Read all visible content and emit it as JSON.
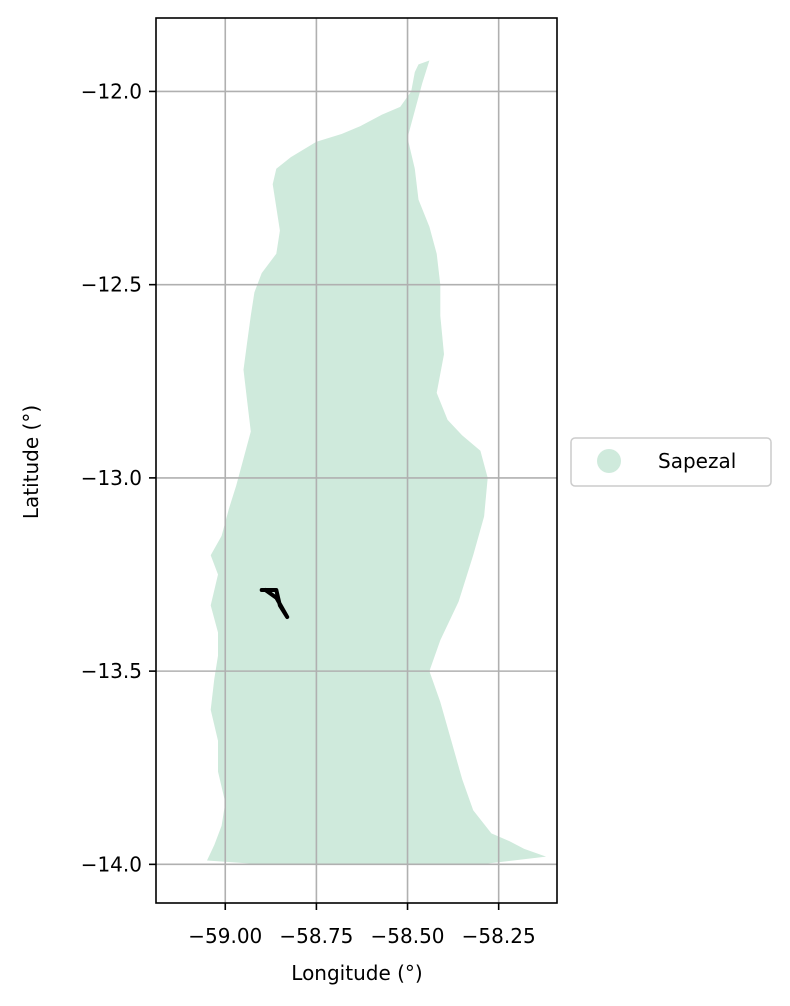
{
  "chart_data": {
    "type": "map",
    "xlabel": "Longitude (°)",
    "ylabel": "Latitude (°)",
    "xlim": [
      -59.19,
      -58.09
    ],
    "ylim": [
      -14.1,
      -11.81
    ],
    "x_ticks": [
      -59.0,
      -58.75,
      -58.5,
      -58.25
    ],
    "x_tick_labels": [
      "−59.00",
      "−58.75",
      "−58.50",
      "−58.25"
    ],
    "y_ticks": [
      -12.0,
      -12.5,
      -13.0,
      -13.5,
      -14.0
    ],
    "y_tick_labels": [
      "−12.0",
      "−12.5",
      "−13.0",
      "−13.5",
      "−14.0"
    ],
    "grid": true,
    "legend": {
      "placement": "outside-right",
      "entries": [
        {
          "label": "Sapezal",
          "color": "#cfeadc"
        }
      ]
    },
    "region": {
      "name": "Sapezal",
      "color": "#cfeadc",
      "boundary": [
        [
          -58.44,
          -11.92
        ],
        [
          -58.47,
          -11.93
        ],
        [
          -58.48,
          -11.95
        ],
        [
          -58.49,
          -12.0
        ],
        [
          -58.52,
          -12.04
        ],
        [
          -58.57,
          -12.06
        ],
        [
          -58.63,
          -12.09
        ],
        [
          -58.68,
          -12.11
        ],
        [
          -58.75,
          -12.13
        ],
        [
          -58.82,
          -12.17
        ],
        [
          -58.86,
          -12.2
        ],
        [
          -58.87,
          -12.24
        ],
        [
          -58.86,
          -12.3
        ],
        [
          -58.85,
          -12.36
        ],
        [
          -58.86,
          -12.42
        ],
        [
          -58.9,
          -12.47
        ],
        [
          -58.92,
          -12.52
        ],
        [
          -58.93,
          -12.58
        ],
        [
          -58.94,
          -12.65
        ],
        [
          -58.95,
          -12.72
        ],
        [
          -58.94,
          -12.8
        ],
        [
          -58.93,
          -12.88
        ],
        [
          -58.95,
          -12.95
        ],
        [
          -58.97,
          -13.02
        ],
        [
          -58.99,
          -13.08
        ],
        [
          -59.01,
          -13.15
        ],
        [
          -59.04,
          -13.2
        ],
        [
          -59.02,
          -13.25
        ],
        [
          -59.04,
          -13.33
        ],
        [
          -59.02,
          -13.4
        ],
        [
          -59.02,
          -13.46
        ],
        [
          -59.03,
          -13.52
        ],
        [
          -59.04,
          -13.6
        ],
        [
          -59.02,
          -13.68
        ],
        [
          -59.02,
          -13.76
        ],
        [
          -59.0,
          -13.84
        ],
        [
          -59.01,
          -13.9
        ],
        [
          -59.03,
          -13.95
        ],
        [
          -59.05,
          -13.99
        ],
        [
          -58.9,
          -14.0
        ],
        [
          -58.6,
          -14.0
        ],
        [
          -58.3,
          -14.0
        ],
        [
          -58.12,
          -13.98
        ],
        [
          -58.18,
          -13.96
        ],
        [
          -58.22,
          -13.94
        ],
        [
          -58.27,
          -13.92
        ],
        [
          -58.32,
          -13.86
        ],
        [
          -58.35,
          -13.78
        ],
        [
          -58.38,
          -13.68
        ],
        [
          -58.41,
          -13.58
        ],
        [
          -58.44,
          -13.5
        ],
        [
          -58.41,
          -13.42
        ],
        [
          -58.36,
          -13.32
        ],
        [
          -58.32,
          -13.2
        ],
        [
          -58.29,
          -13.1
        ],
        [
          -58.28,
          -13.0
        ],
        [
          -58.3,
          -12.93
        ],
        [
          -58.35,
          -12.89
        ],
        [
          -58.39,
          -12.85
        ],
        [
          -58.42,
          -12.78
        ],
        [
          -58.4,
          -12.68
        ],
        [
          -58.41,
          -12.58
        ],
        [
          -58.41,
          -12.5
        ],
        [
          -58.42,
          -12.42
        ],
        [
          -58.44,
          -12.35
        ],
        [
          -58.47,
          -12.28
        ],
        [
          -58.48,
          -12.2
        ],
        [
          -58.5,
          -12.12
        ],
        [
          -58.48,
          -12.05
        ],
        [
          -58.46,
          -11.98
        ],
        [
          -58.44,
          -11.92
        ]
      ]
    },
    "track": {
      "color": "#000000",
      "points": [
        [
          -58.9,
          -13.29
        ],
        [
          -58.86,
          -13.29
        ],
        [
          -58.85,
          -13.33
        ],
        [
          -58.83,
          -13.36
        ],
        [
          -58.86,
          -13.31
        ],
        [
          -58.89,
          -13.29
        ]
      ]
    }
  }
}
